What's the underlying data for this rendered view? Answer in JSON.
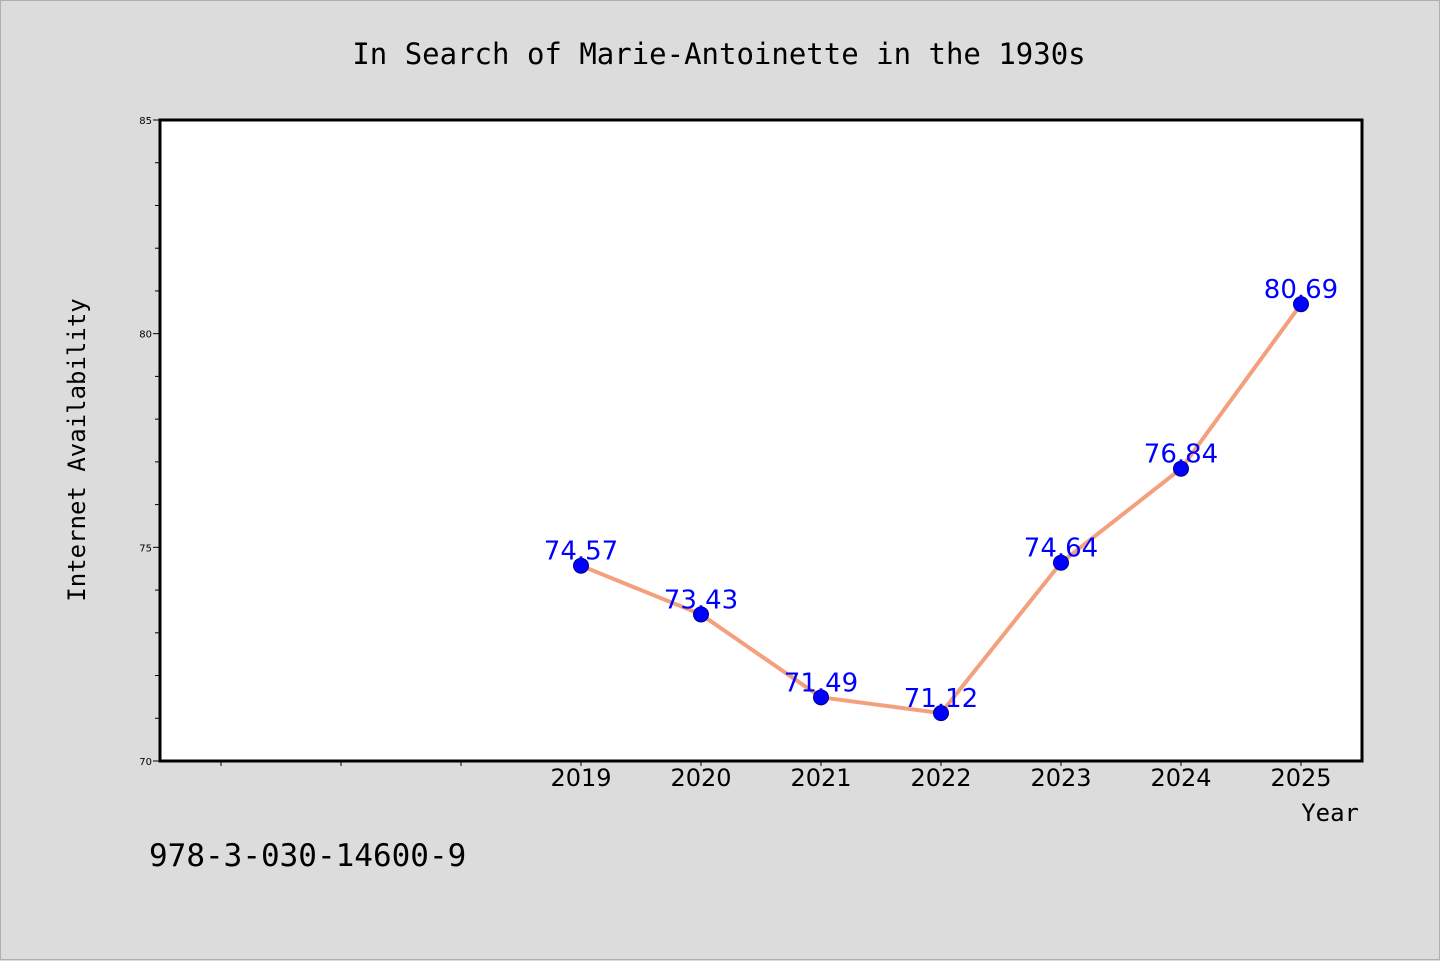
{
  "chart_data": {
    "type": "line",
    "title": "In Search of Marie-Antoinette in the 1930s",
    "xlabel": "Year",
    "ylabel": "Internet Availability",
    "categories": [
      "2019",
      "2020",
      "2021",
      "2022",
      "2023",
      "2024",
      "2025"
    ],
    "values": [
      74.57,
      73.43,
      71.49,
      71.12,
      74.64,
      76.84,
      80.69
    ],
    "data_labels": [
      "74.57",
      "73.43",
      "71.49",
      "71.12",
      "74.64",
      "76.84",
      "80.69"
    ],
    "ylim": [
      70,
      85
    ],
    "yticks": [
      "70",
      "75",
      "80",
      "85"
    ],
    "grid": false,
    "legend": "none",
    "colors": {
      "line": "#f4a07e",
      "marker": "#0000ff",
      "label": "#0000ff",
      "plot_bg": "#ffffff",
      "page_bg": "#dcdcdc"
    }
  },
  "footer": {
    "isbn": "978-3-030-14600-9"
  }
}
